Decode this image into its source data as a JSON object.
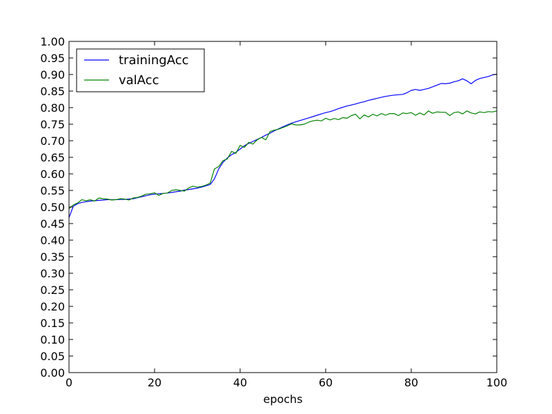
{
  "chart_data": {
    "type": "line",
    "xlabel": "epochs",
    "ylabel": "",
    "xlim": [
      0,
      100
    ],
    "ylim": [
      0.0,
      1.0
    ],
    "xticks": [
      "0",
      "20",
      "40",
      "60",
      "80",
      "100"
    ],
    "yticks": [
      "0.00",
      "0.05",
      "0.10",
      "0.15",
      "0.20",
      "0.25",
      "0.30",
      "0.35",
      "0.40",
      "0.45",
      "0.50",
      "0.55",
      "0.60",
      "0.65",
      "0.70",
      "0.75",
      "0.80",
      "0.85",
      "0.90",
      "0.95",
      "1.00"
    ],
    "grid": false,
    "legend_position": "top-left",
    "series": [
      {
        "name": "trainingAcc",
        "color": "#0000ff",
        "values": [
          0.468,
          0.502,
          0.51,
          0.514,
          0.516,
          0.518,
          0.519,
          0.52,
          0.521,
          0.522,
          0.522,
          0.522,
          0.523,
          0.523,
          0.524,
          0.525,
          0.528,
          0.531,
          0.534,
          0.537,
          0.539,
          0.54,
          0.541,
          0.542,
          0.544,
          0.546,
          0.548,
          0.551,
          0.553,
          0.555,
          0.557,
          0.56,
          0.564,
          0.568,
          0.585,
          0.615,
          0.635,
          0.648,
          0.658,
          0.665,
          0.675,
          0.685,
          0.692,
          0.698,
          0.704,
          0.71,
          0.717,
          0.723,
          0.73,
          0.736,
          0.742,
          0.748,
          0.753,
          0.757,
          0.761,
          0.765,
          0.769,
          0.773,
          0.777,
          0.781,
          0.785,
          0.788,
          0.792,
          0.797,
          0.801,
          0.805,
          0.808,
          0.811,
          0.815,
          0.818,
          0.822,
          0.825,
          0.828,
          0.831,
          0.834,
          0.836,
          0.838,
          0.839,
          0.84,
          0.845,
          0.852,
          0.855,
          0.852,
          0.855,
          0.858,
          0.863,
          0.868,
          0.873,
          0.872,
          0.874,
          0.878,
          0.881,
          0.887,
          0.881,
          0.872,
          0.882,
          0.888,
          0.891,
          0.894,
          0.899,
          0.901
        ]
      },
      {
        "name": "valAcc",
        "color": "#008000",
        "values": [
          0.495,
          0.506,
          0.512,
          0.522,
          0.519,
          0.522,
          0.518,
          0.527,
          0.525,
          0.524,
          0.521,
          0.522,
          0.525,
          0.524,
          0.521,
          0.527,
          0.529,
          0.533,
          0.539,
          0.54,
          0.543,
          0.535,
          0.541,
          0.542,
          0.55,
          0.552,
          0.55,
          0.548,
          0.558,
          0.563,
          0.56,
          0.562,
          0.566,
          0.572,
          0.615,
          0.622,
          0.64,
          0.645,
          0.668,
          0.662,
          0.686,
          0.68,
          0.695,
          0.69,
          0.703,
          0.71,
          0.703,
          0.728,
          0.732,
          0.735,
          0.74,
          0.745,
          0.751,
          0.748,
          0.748,
          0.75,
          0.756,
          0.76,
          0.762,
          0.76,
          0.768,
          0.763,
          0.767,
          0.764,
          0.77,
          0.768,
          0.776,
          0.78,
          0.766,
          0.778,
          0.772,
          0.78,
          0.775,
          0.782,
          0.777,
          0.782,
          0.782,
          0.776,
          0.784,
          0.782,
          0.785,
          0.777,
          0.784,
          0.778,
          0.79,
          0.783,
          0.787,
          0.786,
          0.786,
          0.776,
          0.785,
          0.787,
          0.781,
          0.79,
          0.784,
          0.781,
          0.787,
          0.785,
          0.788,
          0.787,
          0.79
        ]
      }
    ]
  }
}
